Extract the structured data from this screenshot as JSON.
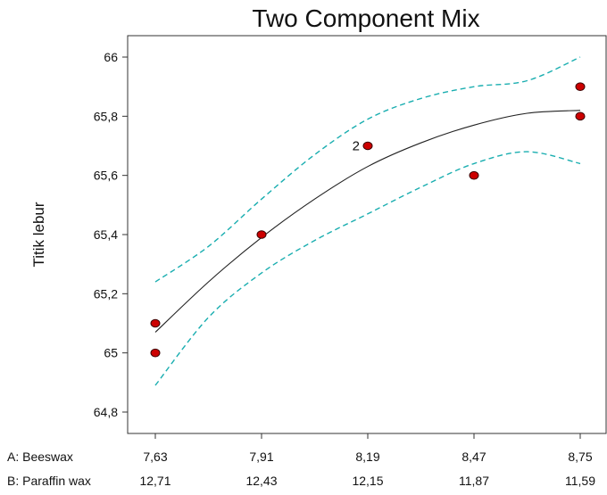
{
  "chart_data": {
    "type": "line",
    "title": "Two Component Mix",
    "ylabel": "Titik lebur",
    "xlim": [
      7.63,
      8.75
    ],
    "ylim": [
      64.73,
      66.09
    ],
    "yticks": [
      {
        "value": 64.8,
        "label": "64,8"
      },
      {
        "value": 65.0,
        "label": "65"
      },
      {
        "value": 65.2,
        "label": "65,2"
      },
      {
        "value": 65.4,
        "label": "65,4"
      },
      {
        "value": 65.6,
        "label": "65,6"
      },
      {
        "value": 65.8,
        "label": "65,8"
      },
      {
        "value": 66.0,
        "label": "66"
      }
    ],
    "x_axes": [
      {
        "name": "A: Beeswax",
        "ticks": [
          {
            "value": 7.63,
            "label": "7,63"
          },
          {
            "value": 7.91,
            "label": "7,91"
          },
          {
            "value": 8.19,
            "label": "8,19"
          },
          {
            "value": 8.47,
            "label": "8,47"
          },
          {
            "value": 8.75,
            "label": "8,75"
          }
        ]
      },
      {
        "name": "B: Paraffin wax",
        "ticks": [
          {
            "value": 7.63,
            "label": "12,71"
          },
          {
            "value": 7.91,
            "label": "12,43"
          },
          {
            "value": 8.19,
            "label": "12,15"
          },
          {
            "value": 8.47,
            "label": "11,87"
          },
          {
            "value": 8.75,
            "label": "11,59"
          }
        ]
      }
    ],
    "points": [
      {
        "x": 7.63,
        "y": 65.1,
        "label": ""
      },
      {
        "x": 7.63,
        "y": 65.0,
        "label": ""
      },
      {
        "x": 7.91,
        "y": 65.4,
        "label": ""
      },
      {
        "x": 8.19,
        "y": 65.7,
        "label": "2"
      },
      {
        "x": 8.47,
        "y": 65.6,
        "label": ""
      },
      {
        "x": 8.75,
        "y": 65.9,
        "label": ""
      },
      {
        "x": 8.75,
        "y": 65.8,
        "label": ""
      }
    ],
    "fit": {
      "x": [
        7.63,
        7.77,
        7.91,
        8.05,
        8.19,
        8.33,
        8.47,
        8.61,
        8.75
      ],
      "y": [
        65.07,
        65.24,
        65.39,
        65.52,
        65.63,
        65.71,
        65.77,
        65.81,
        65.82
      ]
    },
    "ci_upper": {
      "x": [
        7.63,
        7.77,
        7.91,
        8.05,
        8.19,
        8.33,
        8.47,
        8.61,
        8.75
      ],
      "y": [
        65.24,
        65.36,
        65.52,
        65.67,
        65.79,
        65.86,
        65.9,
        65.92,
        66.0
      ]
    },
    "ci_lower": {
      "x": [
        7.63,
        7.77,
        7.91,
        8.05,
        8.19,
        8.33,
        8.47,
        8.61,
        8.75
      ],
      "y": [
        64.89,
        65.12,
        65.27,
        65.38,
        65.47,
        65.56,
        65.64,
        65.68,
        65.64
      ]
    },
    "colors": {
      "points": "#cc0000",
      "point_outline": "#3a0000",
      "fit": "#222222",
      "interval": "#1aaeb0"
    },
    "grid": false
  }
}
